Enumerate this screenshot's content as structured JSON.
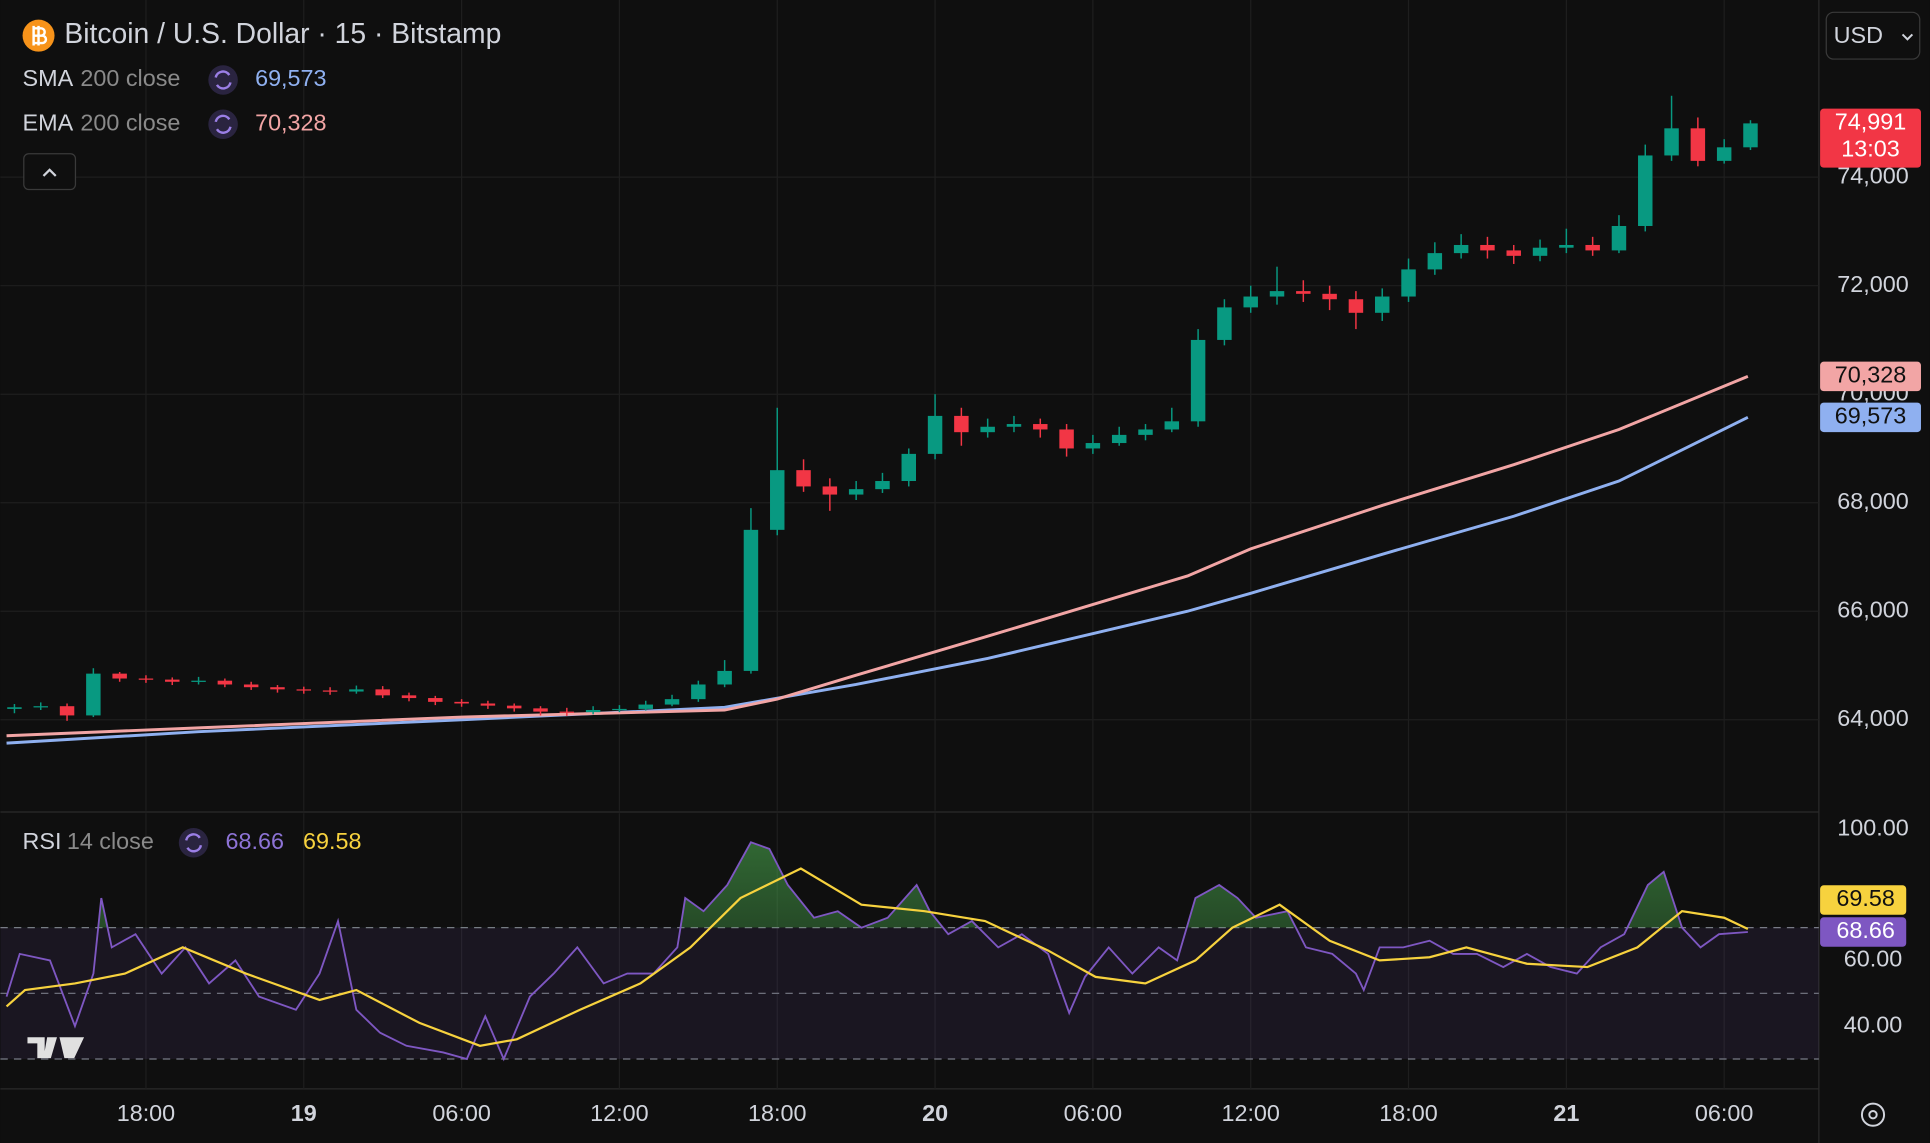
{
  "chart_data": [
    {
      "type": "candlestick",
      "title": "Bitcoin / U.S. Dollar · 15 · Bitstamp",
      "currency": "USD",
      "up_color": "#089981",
      "down_color": "#f23645",
      "price_tag_color": "#f23645",
      "last_price_label": "74,991",
      "countdown": "13:03",
      "grid": true,
      "xlim": [
        12.7,
        81.6
      ],
      "ylim": [
        62322,
        77265
      ],
      "xticks": [
        {
          "value": 18,
          "label": "18:00"
        },
        {
          "value": 24,
          "label": "19"
        },
        {
          "value": 30,
          "label": "06:00"
        },
        {
          "value": 36,
          "label": "12:00"
        },
        {
          "value": 42,
          "label": "18:00"
        },
        {
          "value": 48,
          "label": "20"
        },
        {
          "value": 54,
          "label": "06:00"
        },
        {
          "value": 60,
          "label": "12:00"
        },
        {
          "value": 66,
          "label": "18:00"
        },
        {
          "value": 72,
          "label": "21"
        },
        {
          "value": 78,
          "label": "06:00"
        }
      ],
      "yticks": [
        {
          "value": 64000,
          "label": "64,000"
        },
        {
          "value": 66000,
          "label": "66,000"
        },
        {
          "value": 68000,
          "label": "68,000"
        },
        {
          "value": 70000,
          "label": "70,000"
        },
        {
          "value": 72000,
          "label": "72,000"
        },
        {
          "value": 74000,
          "label": "74,000"
        }
      ],
      "x": [
        13,
        14,
        15,
        16,
        17,
        18,
        19,
        20,
        21,
        22,
        23,
        24,
        25,
        26,
        27,
        28,
        29,
        30,
        31,
        32,
        33,
        34,
        35,
        36,
        37,
        38,
        39,
        40,
        41,
        42,
        43,
        44,
        45,
        46,
        47,
        48,
        49,
        50,
        51,
        52,
        53,
        54,
        55,
        56,
        57,
        58,
        59,
        60,
        61,
        62,
        63,
        64,
        65,
        66,
        67,
        68,
        69,
        70,
        71,
        72,
        73,
        74,
        75,
        76,
        77,
        78,
        79
      ],
      "open": [
        64200,
        64230,
        64250,
        64080,
        64850,
        64760,
        64740,
        64700,
        64720,
        64650,
        64600,
        64560,
        64540,
        64520,
        64560,
        64450,
        64400,
        64330,
        64300,
        64260,
        64210,
        64150,
        64140,
        64180,
        64200,
        64280,
        64380,
        64650,
        64900,
        67500,
        68600,
        68300,
        68150,
        68250,
        68400,
        68900,
        69600,
        69300,
        69400,
        69450,
        69350,
        69000,
        69100,
        69250,
        69350,
        69500,
        71000,
        71600,
        71800,
        71900,
        71850,
        71750,
        71500,
        71800,
        72300,
        72600,
        72750,
        72650,
        72550,
        72700,
        72750,
        72650,
        73100,
        74400,
        74900,
        74300,
        74550
      ],
      "high": [
        64290,
        64320,
        64300,
        64950,
        64880,
        64820,
        64780,
        64790,
        64760,
        64700,
        64640,
        64610,
        64600,
        64630,
        64620,
        64500,
        64440,
        64380,
        64350,
        64300,
        64250,
        64220,
        64250,
        64270,
        64350,
        64460,
        64720,
        65100,
        67900,
        69750,
        68800,
        68450,
        68400,
        68550,
        69000,
        70000,
        69750,
        69550,
        69600,
        69550,
        69450,
        69250,
        69400,
        69450,
        69750,
        71200,
        71750,
        72000,
        72350,
        72100,
        72000,
        71900,
        71950,
        72500,
        72800,
        72950,
        72900,
        72750,
        72850,
        73050,
        72900,
        73300,
        74600,
        75500,
        75100,
        74700,
        75050
      ],
      "low": [
        64120,
        64180,
        63980,
        64050,
        64700,
        64680,
        64640,
        64650,
        64600,
        64550,
        64500,
        64480,
        64460,
        64480,
        64400,
        64340,
        64270,
        64240,
        64200,
        64150,
        64080,
        64070,
        64100,
        64140,
        64170,
        64250,
        64330,
        64600,
        64850,
        67400,
        68200,
        67850,
        68050,
        68180,
        68300,
        68800,
        69050,
        69200,
        69300,
        69200,
        68850,
        68900,
        69050,
        69150,
        69300,
        69400,
        70900,
        71500,
        71650,
        71700,
        71550,
        71200,
        71350,
        71700,
        72200,
        72500,
        72500,
        72400,
        72450,
        72600,
        72550,
        72600,
        73000,
        74300,
        74200,
        74250,
        74500
      ],
      "close": [
        64230,
        64250,
        64080,
        64850,
        64760,
        64740,
        64700,
        64720,
        64650,
        64600,
        64560,
        64540,
        64520,
        64560,
        64450,
        64400,
        64330,
        64300,
        64260,
        64210,
        64150,
        64140,
        64180,
        64200,
        64280,
        64380,
        64650,
        64900,
        67500,
        68600,
        68300,
        68150,
        68250,
        68400,
        68900,
        69600,
        69300,
        69400,
        69450,
        69350,
        69000,
        69100,
        69250,
        69350,
        69500,
        71000,
        71600,
        71800,
        71900,
        71850,
        71750,
        71500,
        71800,
        72300,
        72600,
        72750,
        72650,
        72550,
        72700,
        72750,
        72650,
        73100,
        74400,
        74900,
        74300,
        74550,
        74991
      ],
      "series": [
        {
          "name": "SMA",
          "params": "200 close",
          "color": "#8fb0f0",
          "last_value_label": "69,573",
          "x": [
            12.7,
            20,
            30,
            40,
            45,
            50,
            57.6,
            60,
            65,
            70,
            74,
            78.9
          ],
          "values": [
            63570,
            63780,
            64000,
            64230,
            64650,
            65130,
            66000,
            66330,
            67050,
            67750,
            68400,
            69573
          ]
        },
        {
          "name": "EMA",
          "params": "200 close",
          "color": "#f2a5a5",
          "last_value_label": "70,328",
          "x": [
            12.7,
            20,
            30,
            40,
            42,
            45,
            50,
            57.6,
            60,
            65,
            70,
            74,
            78.9
          ],
          "values": [
            63705,
            63850,
            64050,
            64180,
            64380,
            64820,
            65540,
            66650,
            67150,
            67950,
            68700,
            69350,
            70328
          ]
        }
      ]
    },
    {
      "type": "line",
      "title": "RSI",
      "params": "14 close",
      "ylim": [
        20.9,
        105.2
      ],
      "yticks": [
        {
          "value": 40,
          "label": "40.00"
        },
        {
          "value": 60,
          "label": "60.00"
        },
        {
          "value": 100,
          "label": "100.00"
        }
      ],
      "bands": [
        30,
        50,
        70
      ],
      "band_color": "#7e57c2",
      "overbought_fill": "#4caf50",
      "series": [
        {
          "color": "#7e57c2",
          "last_value_label": "68.66",
          "x": [
            12.7,
            13.2,
            14.35,
            15.3,
            16,
            16.3,
            16.7,
            17.6,
            18.6,
            19.5,
            20.4,
            21.4,
            22.3,
            23.7,
            24.6,
            25.3,
            26,
            26.9,
            27.9,
            29.3,
            30.2,
            30.9,
            31.6,
            32.6,
            33.5,
            34.4,
            35.4,
            36.3,
            37.3,
            38.2,
            38.5,
            39.2,
            40.1,
            41,
            41.7,
            42.4,
            43.4,
            44.3,
            45.2,
            46.2,
            47.3,
            47.8,
            48.5,
            49.4,
            50.4,
            51.3,
            52.3,
            53.1,
            53.7,
            54.6,
            55.5,
            56.5,
            57.2,
            57.9,
            58.8,
            59.5,
            60.2,
            61.4,
            62.1,
            63.1,
            64,
            64.3,
            64.9,
            65.8,
            66.8,
            67.7,
            68.6,
            69.6,
            70.5,
            71.4,
            72.4,
            73.3,
            74.2,
            75.1,
            75.7,
            76.4,
            77.1,
            77.8,
            78.9
          ],
          "values": [
            49,
            62,
            60,
            40,
            56,
            79,
            64,
            68,
            56,
            64,
            53,
            60,
            49,
            45,
            56,
            72,
            45,
            38,
            34,
            32,
            30,
            43,
            30,
            49,
            56,
            64,
            53,
            56,
            56,
            64,
            79,
            75,
            83,
            96,
            94,
            83,
            73,
            75,
            70,
            73,
            83,
            75,
            68,
            72,
            64,
            68,
            62,
            44,
            55,
            64,
            56,
            64,
            60,
            79,
            83,
            79,
            73,
            75,
            64,
            62,
            56,
            51,
            64,
            64,
            66,
            62,
            62,
            58,
            62,
            58,
            56,
            64,
            68,
            83,
            87,
            70,
            64,
            68,
            68.66
          ]
        },
        {
          "color": "#f7d23e",
          "last_value_label": "69.58",
          "x": [
            12.7,
            13.4,
            15.3,
            17.2,
            19.4,
            21.8,
            24.6,
            26,
            28.4,
            30.7,
            32.1,
            34.5,
            36.8,
            38.7,
            40.6,
            42.9,
            45.2,
            47.6,
            49.9,
            52.3,
            54.1,
            56,
            57.9,
            59.3,
            61.1,
            63,
            64.9,
            66.8,
            68.2,
            70.5,
            72.8,
            74.7,
            76.4,
            78,
            78.9
          ],
          "values": [
            46,
            51,
            53,
            56,
            64,
            56,
            48,
            51,
            41,
            34,
            36,
            45,
            53,
            64,
            79,
            88,
            77,
            75,
            72,
            63,
            55,
            53,
            60,
            70,
            77,
            66,
            60,
            61,
            64,
            59,
            58,
            64,
            75,
            73,
            69.58
          ]
        }
      ]
    }
  ]
}
